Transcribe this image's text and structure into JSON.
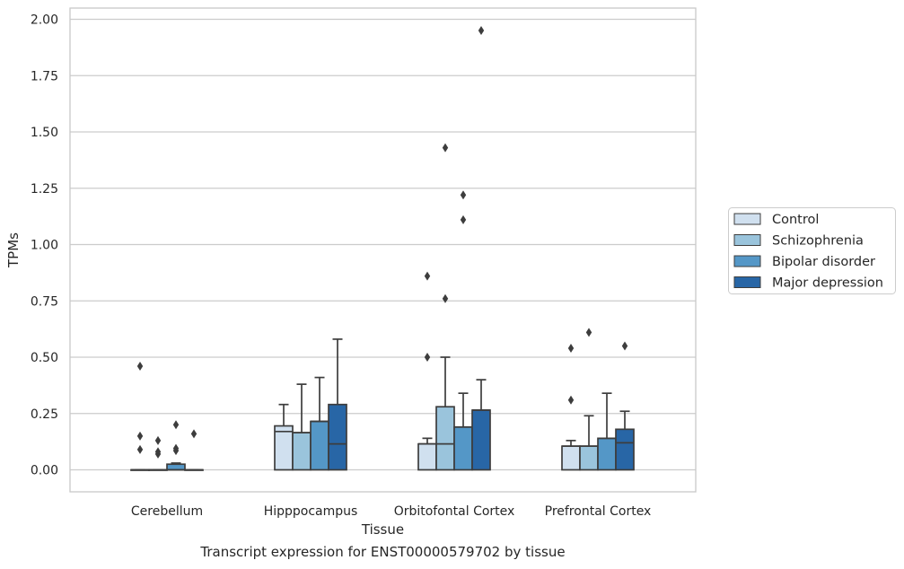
{
  "caption": "Transcript expression for ENST00000579702 by tissue",
  "colors": {
    "Control": "#d0e0ef",
    "Schizophrenia": "#9ac4dc",
    "Bipolar disorder": "#5497c7",
    "Major depression": "#2866a6",
    "line": "#3d3d3d",
    "grid": "#cccccc",
    "frame": "#c8c8c8"
  },
  "chart_data": {
    "type": "box",
    "title": "",
    "xlabel": "Tissue",
    "ylabel": "TPMs",
    "ylim": [
      -0.09,
      2.05
    ],
    "yticks": [
      "0.00",
      "0.25",
      "0.50",
      "0.75",
      "1.00",
      "1.25",
      "1.50",
      "1.75",
      "2.00"
    ],
    "categories": [
      "Cerebellum",
      "Hipppocampus",
      "Orbitofontal Cortex",
      "Prefrontal Cortex"
    ],
    "hue": [
      "Control",
      "Schizophrenia",
      "Bipolar disorder",
      "Major depression"
    ],
    "grid": "horizontal",
    "legend_position": "right, outside",
    "boxes": [
      {
        "category": "Cerebellum",
        "series": "Control",
        "q1": 0,
        "median": 0,
        "q3": 0,
        "whislo": 0,
        "whishi": 0,
        "fliers": [
          0.46,
          0.15,
          0.09
        ]
      },
      {
        "category": "Cerebellum",
        "series": "Schizophrenia",
        "q1": 0,
        "median": 0,
        "q3": 0,
        "whislo": 0,
        "whishi": 0,
        "fliers": [
          0.13,
          0.08,
          0.07
        ]
      },
      {
        "category": "Cerebellum",
        "series": "Bipolar disorder",
        "q1": 0,
        "median": 0,
        "q3": 0.025,
        "whislo": 0,
        "whishi": 0.03,
        "fliers": [
          0.2,
          0.095,
          0.085
        ]
      },
      {
        "category": "Cerebellum",
        "series": "Major depression",
        "q1": 0,
        "median": 0,
        "q3": 0,
        "whislo": 0,
        "whishi": 0,
        "fliers": [
          0.16
        ]
      },
      {
        "category": "Hipppocampus",
        "series": "Control",
        "q1": 0,
        "median": 0.17,
        "q3": 0.195,
        "whislo": 0,
        "whishi": 0.29,
        "fliers": []
      },
      {
        "category": "Hipppocampus",
        "series": "Schizophrenia",
        "q1": 0,
        "median": 0.165,
        "q3": 0.165,
        "whislo": 0,
        "whishi": 0.38,
        "fliers": []
      },
      {
        "category": "Hipppocampus",
        "series": "Bipolar disorder",
        "q1": 0,
        "median": 0.215,
        "q3": 0.215,
        "whislo": 0,
        "whishi": 0.41,
        "fliers": []
      },
      {
        "category": "Hipppocampus",
        "series": "Major depression",
        "q1": 0,
        "median": 0.115,
        "q3": 0.29,
        "whislo": 0,
        "whishi": 0.58,
        "fliers": []
      },
      {
        "category": "Orbitofontal Cortex",
        "series": "Control",
        "q1": 0,
        "median": 0.115,
        "q3": 0.115,
        "whislo": 0,
        "whishi": 0.14,
        "fliers": [
          0.86,
          0.5
        ]
      },
      {
        "category": "Orbitofontal Cortex",
        "series": "Schizophrenia",
        "q1": 0,
        "median": 0.115,
        "q3": 0.28,
        "whislo": 0,
        "whishi": 0.5,
        "fliers": [
          1.43,
          0.76
        ]
      },
      {
        "category": "Orbitofontal Cortex",
        "series": "Bipolar disorder",
        "q1": 0,
        "median": 0.19,
        "q3": 0.19,
        "whislo": 0,
        "whishi": 0.34,
        "fliers": [
          1.22,
          1.11
        ]
      },
      {
        "category": "Orbitofontal Cortex",
        "series": "Major depression",
        "q1": 0,
        "median": 0.265,
        "q3": 0.265,
        "whislo": 0,
        "whishi": 0.4,
        "fliers": [
          1.95
        ]
      },
      {
        "category": "Prefrontal Cortex",
        "series": "Control",
        "q1": 0,
        "median": 0.105,
        "q3": 0.105,
        "whislo": 0,
        "whishi": 0.13,
        "fliers": [
          0.54,
          0.31
        ]
      },
      {
        "category": "Prefrontal Cortex",
        "series": "Schizophrenia",
        "q1": 0,
        "median": 0.105,
        "q3": 0.105,
        "whislo": 0,
        "whishi": 0.24,
        "fliers": [
          0.61
        ]
      },
      {
        "category": "Prefrontal Cortex",
        "series": "Bipolar disorder",
        "q1": 0,
        "median": 0.14,
        "q3": 0.14,
        "whislo": 0,
        "whishi": 0.34,
        "fliers": []
      },
      {
        "category": "Prefrontal Cortex",
        "series": "Major depression",
        "q1": 0,
        "median": 0.12,
        "q3": 0.18,
        "whislo": 0,
        "whishi": 0.26,
        "fliers": [
          0.55
        ]
      }
    ]
  }
}
